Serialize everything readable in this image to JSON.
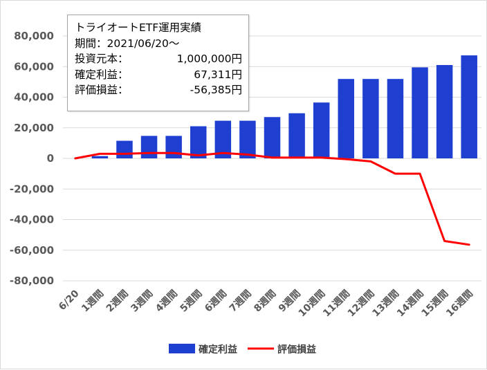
{
  "chart_data": {
    "type": "bar",
    "categories": [
      "6/20",
      "1週間",
      "2週間",
      "3週間",
      "4週間",
      "5週間",
      "6週間",
      "7週間",
      "8週間",
      "9週間",
      "10週間",
      "11週間",
      "12週間",
      "13週間",
      "14週間",
      "15週間",
      "16週間"
    ],
    "series": [
      {
        "name": "確定利益",
        "type": "bar",
        "color": "#1f3fd0",
        "values": [
          0,
          1500,
          11500,
          14700,
          14700,
          21000,
          24600,
          24600,
          27000,
          29500,
          36500,
          51900,
          51900,
          51900,
          59500,
          61000,
          67311
        ]
      },
      {
        "name": "評価損益",
        "type": "line",
        "color": "#ff0000",
        "values": [
          0,
          3000,
          3000,
          3500,
          3500,
          2000,
          3500,
          2500,
          500,
          500,
          500,
          -500,
          -2000,
          -10000,
          -10000,
          -54000,
          -56385
        ]
      }
    ],
    "ylim": [
      -80000,
      80000
    ],
    "yticks": [
      "80,000",
      "60,000",
      "40,000",
      "20,000",
      "0",
      "-20,000",
      "-40,000",
      "-60,000",
      "-80,000"
    ],
    "ytick_values": [
      80000,
      60000,
      40000,
      20000,
      0,
      -20000,
      -40000,
      -60000,
      -80000
    ],
    "grid": true,
    "legend_position": "bottom"
  },
  "info_box": {
    "title": "トライオートETF運用実績",
    "period": "期間：2021/06/20～",
    "rows": [
      {
        "label": "投資元本：",
        "value": "1,000,000円"
      },
      {
        "label": "確定利益：",
        "value": "67,311円"
      },
      {
        "label": "評価損益：",
        "value": "-56,385円"
      }
    ]
  },
  "legend": {
    "bar_label": "確定利益",
    "line_label": "評価損益"
  }
}
